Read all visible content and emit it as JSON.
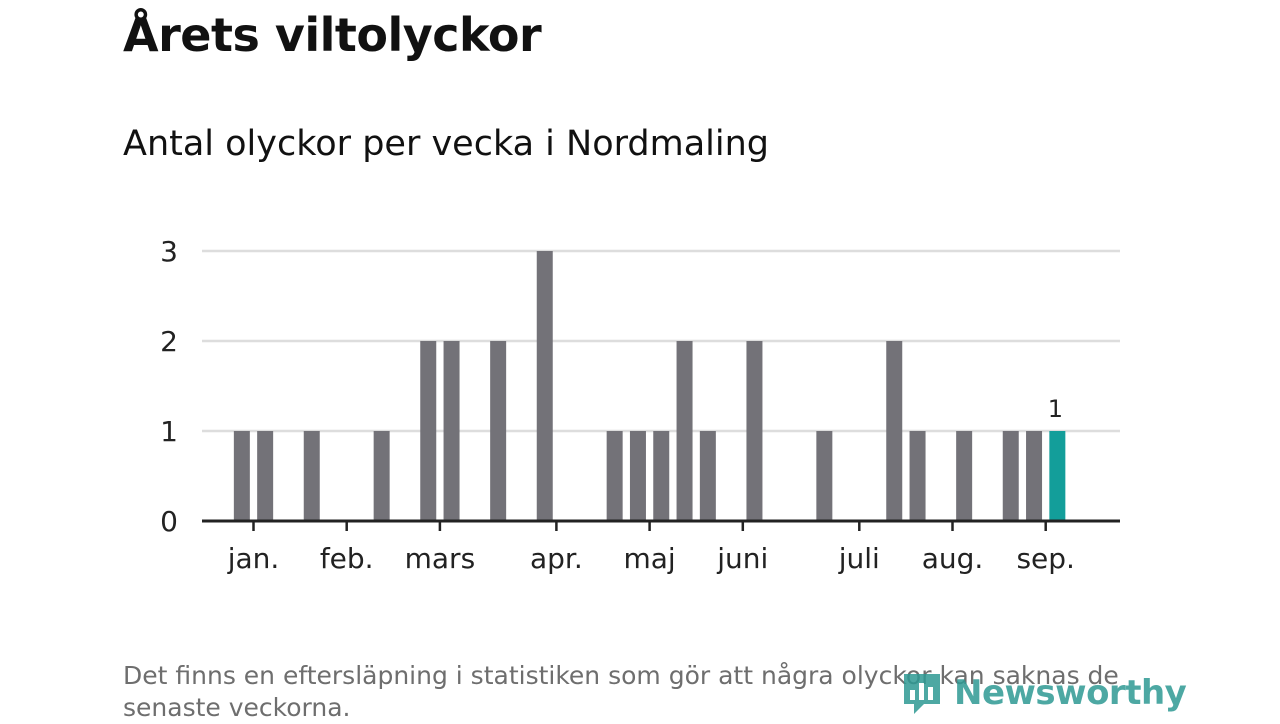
{
  "title": "Årets viltolyckor",
  "subtitle": "Antal olyckor per vecka i Nordmaling",
  "footnote": "Det finns en eftersläpning i statistiken som gör att några olyckor kan saknas de senaste veckorna.",
  "brand": {
    "name": "Newsworthy",
    "icon": "newsworthy-logo-icon",
    "color": "#2e9a94"
  },
  "chart_data": {
    "type": "bar",
    "xlabel": "",
    "ylabel": "",
    "ylim": [
      0,
      3
    ],
    "yticks": [
      0,
      1,
      2,
      3
    ],
    "grid": true,
    "legend": "none",
    "bar_color": "#737278",
    "highlight_color": "#139e9a",
    "x": [
      1,
      2,
      3,
      4,
      5,
      6,
      7,
      8,
      9,
      10,
      11,
      12,
      13,
      14,
      15,
      16,
      17,
      18,
      19,
      20,
      21,
      22,
      23,
      24,
      25,
      26,
      27,
      28,
      29,
      30,
      31,
      32,
      33,
      34,
      35,
      36,
      37,
      38,
      39,
      40
    ],
    "values": [
      0,
      1,
      1,
      0,
      1,
      0,
      0,
      1,
      0,
      2,
      2,
      0,
      2,
      0,
      3,
      0,
      0,
      1,
      1,
      1,
      2,
      1,
      0,
      2,
      0,
      0,
      1,
      0,
      0,
      2,
      1,
      0,
      1,
      0,
      1,
      1,
      1,
      0,
      0,
      0
    ],
    "highlight_index": 36,
    "data_labels": [
      {
        "index": 36,
        "text": "1"
      }
    ],
    "month_labels": [
      {
        "label": "jan.",
        "pos": 2.5
      },
      {
        "label": "feb.",
        "pos": 6.5
      },
      {
        "label": "mars",
        "pos": 10.5
      },
      {
        "label": "apr.",
        "pos": 15.5
      },
      {
        "label": "maj",
        "pos": 19.5
      },
      {
        "label": "juni",
        "pos": 23.5
      },
      {
        "label": "juli",
        "pos": 28.5
      },
      {
        "label": "aug.",
        "pos": 32.5
      },
      {
        "label": "sep.",
        "pos": 36.5
      }
    ]
  }
}
